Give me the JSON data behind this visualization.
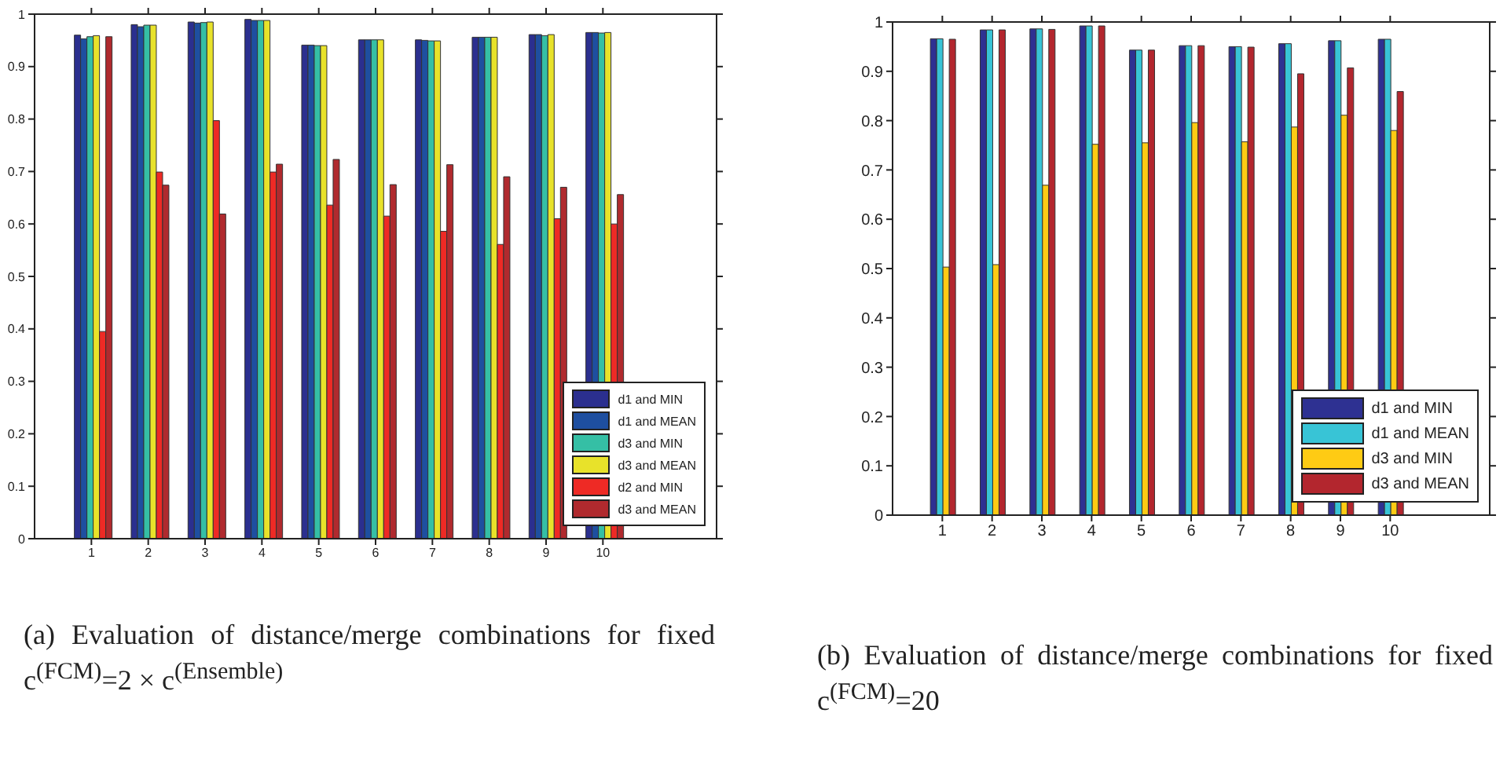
{
  "chart_data": [
    {
      "type": "bar",
      "title": "(a) Evaluation of distance/merge combinations for fixed c$^{(FCM)}$=2 × c$^{(Ensemble)}$",
      "x": [
        1,
        2,
        3,
        4,
        5,
        6,
        7,
        8,
        9,
        10
      ],
      "xlim": [
        0,
        12
      ],
      "xticks": [
        1,
        2,
        3,
        4,
        5,
        6,
        7,
        8,
        9,
        10
      ],
      "ylim": [
        0,
        1
      ],
      "yticks": [
        0,
        0.1,
        0.2,
        0.3,
        0.4,
        0.5,
        0.6,
        0.7,
        0.8,
        0.9,
        1
      ],
      "legend": "bottom right",
      "series": [
        {
          "name": "d1 and MIN",
          "color": "#2b2f8f",
          "values": [
            0.96,
            0.98,
            0.985,
            0.99,
            0.941,
            0.951,
            0.951,
            0.956,
            0.961,
            0.965
          ]
        },
        {
          "name": "d1 and MEAN",
          "color": "#1e4fa0",
          "values": [
            0.953,
            0.976,
            0.983,
            0.988,
            0.941,
            0.951,
            0.95,
            0.956,
            0.961,
            0.965
          ]
        },
        {
          "name": "d3 and MIN",
          "color": "#35bfa5",
          "values": [
            0.957,
            0.979,
            0.984,
            0.988,
            0.94,
            0.951,
            0.949,
            0.956,
            0.959,
            0.964
          ]
        },
        {
          "name": "d3 and MEAN",
          "color": "#e8e22a",
          "values": [
            0.959,
            0.979,
            0.985,
            0.988,
            0.94,
            0.951,
            0.949,
            0.956,
            0.961,
            0.965
          ]
        },
        {
          "name": "d2 and MIN",
          "color": "#ee2a25",
          "values": [
            0.395,
            0.699,
            0.797,
            0.699,
            0.636,
            0.615,
            0.586,
            0.561,
            0.61,
            0.6
          ]
        },
        {
          "name": "d3 and MEAN",
          "color": "#b02a2e",
          "values": [
            0.957,
            0.674,
            0.619,
            0.714,
            0.723,
            0.675,
            0.713,
            0.69,
            0.67,
            0.656
          ]
        }
      ]
    },
    {
      "type": "bar",
      "title": "(b) Evaluation of distance/merge combinations for fixed c$^{(FCM)}$=20",
      "x": [
        1,
        2,
        3,
        4,
        5,
        6,
        7,
        8,
        9,
        10
      ],
      "xlim": [
        0,
        12
      ],
      "xticks": [
        1,
        2,
        3,
        4,
        5,
        6,
        7,
        8,
        9,
        10
      ],
      "ylim": [
        0,
        1
      ],
      "yticks": [
        0,
        0.1,
        0.2,
        0.3,
        0.4,
        0.5,
        0.6,
        0.7,
        0.8,
        0.9,
        1
      ],
      "legend": "bottom right",
      "series": [
        {
          "name": "d1 and MIN",
          "color": "#2e3192",
          "values": [
            0.966,
            0.984,
            0.986,
            0.992,
            0.943,
            0.952,
            0.95,
            0.956,
            0.962,
            0.965
          ]
        },
        {
          "name": "d1 and MEAN",
          "color": "#38c4d6",
          "values": [
            0.966,
            0.984,
            0.986,
            0.992,
            0.943,
            0.952,
            0.95,
            0.956,
            0.962,
            0.965
          ]
        },
        {
          "name": "d3 and MIN",
          "color": "#fecb14",
          "values": [
            0.503,
            0.508,
            0.669,
            0.752,
            0.755,
            0.796,
            0.757,
            0.787,
            0.811,
            0.78
          ]
        },
        {
          "name": "d3 and MEAN",
          "color": "#b3262e",
          "values": [
            0.965,
            0.984,
            0.985,
            0.992,
            0.943,
            0.952,
            0.949,
            0.895,
            0.907,
            0.859
          ]
        }
      ]
    }
  ]
}
